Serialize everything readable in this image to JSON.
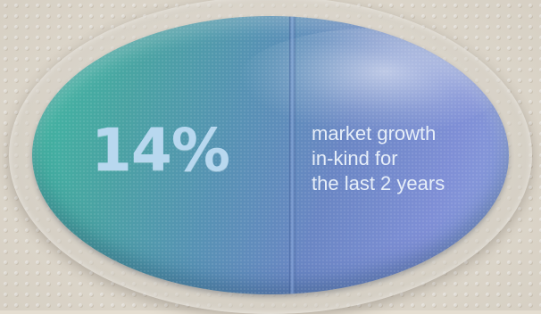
{
  "badge": {
    "value": "14%",
    "description_lines": [
      "market growth",
      "in-kind for",
      "the last 2 years"
    ]
  },
  "colors": {
    "pill_start": "#3dbba0",
    "pill_end": "#8da2de",
    "value_text": "#b8d8ef",
    "description_text": "#e6eef8",
    "background": "#e4ddd0"
  }
}
